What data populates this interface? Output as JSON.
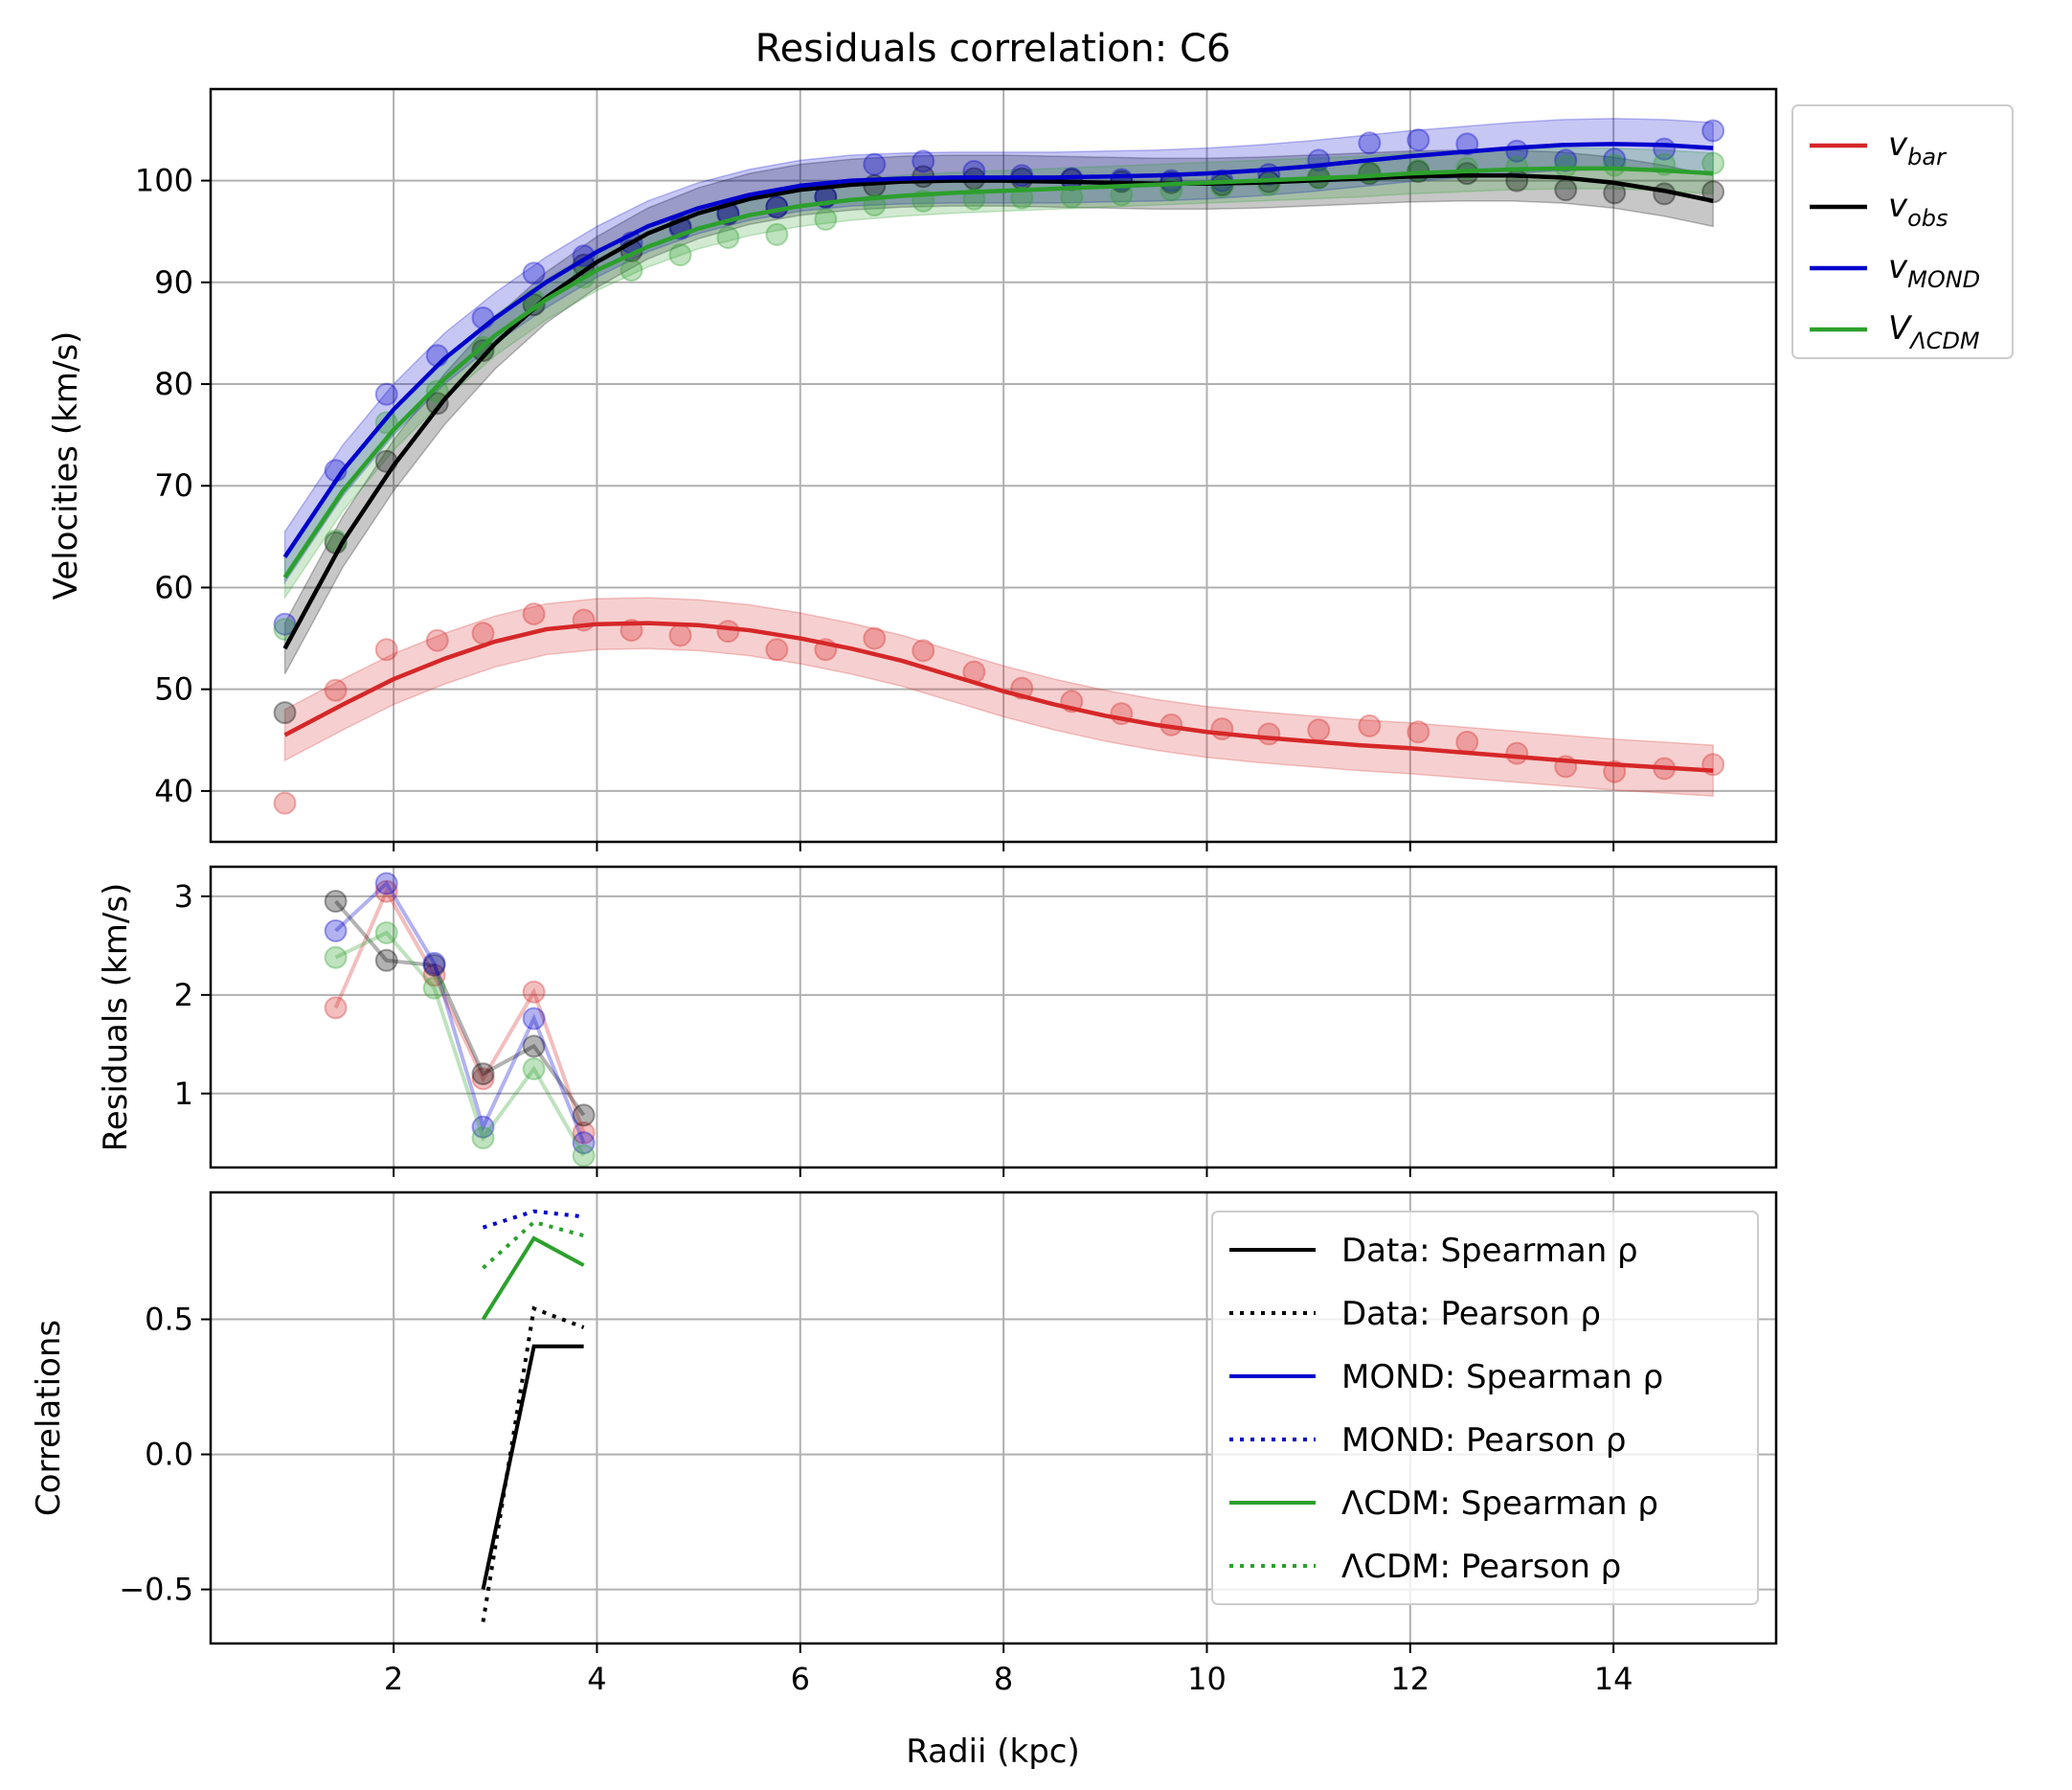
{
  "chart_data": {
    "title": "Residuals correlation: C6",
    "xlabel": "Radii (kpc)",
    "xlim": [
      0.2,
      15.6
    ],
    "xticks": [
      2,
      4,
      6,
      8,
      10,
      12,
      14
    ],
    "colors": {
      "bar": "#d62728",
      "obs": "#000000",
      "mond": "#0000cc",
      "lcdm": "#2ca02c",
      "grid": "#b0b0b0"
    },
    "panels": [
      {
        "id": "velocities",
        "type": "line",
        "ylabel": "Velocities (km/s)",
        "ylim": [
          35,
          109
        ],
        "yticks": [
          40,
          50,
          60,
          70,
          80,
          90,
          100
        ],
        "grid": true,
        "legend": "outside-right",
        "legend_entries": [
          {
            "main": "v",
            "sub": "bar",
            "color": "#d62728"
          },
          {
            "main": "v",
            "sub": "obs",
            "color": "#000000"
          },
          {
            "main": "v",
            "sub": "MOND",
            "color": "#0000cc"
          },
          {
            "main": "V",
            "sub": "ΛCDM",
            "color": "#2ca02c"
          }
        ],
        "x_points": [
          0.93,
          1.43,
          1.93,
          2.43,
          2.88,
          3.38,
          3.87,
          4.34,
          4.82,
          5.29,
          5.77,
          6.25,
          6.73,
          7.21,
          7.71,
          8.18,
          8.67,
          9.16,
          9.65,
          10.15,
          10.61,
          11.1,
          11.6,
          12.08,
          12.56,
          13.05,
          13.53,
          14.01,
          14.5,
          14.98
        ],
        "series": [
          {
            "key": "bar",
            "color": "#d62728",
            "band": 2.5,
            "points": [
              38.8,
              49.9,
              53.9,
              54.8,
              55.5,
              57.4,
              56.8,
              55.8,
              55.3,
              55.7,
              53.9,
              53.9,
              55.0,
              53.8,
              51.7,
              50.1,
              48.8,
              47.6,
              46.5,
              46.1,
              45.6,
              46.0,
              46.4,
              45.8,
              44.8,
              43.7,
              42.4,
              41.9,
              42.2,
              42.6
            ],
            "line_x": [
              0.93,
              1.5,
              2.0,
              2.5,
              3.0,
              3.5,
              4.0,
              4.5,
              5.0,
              5.5,
              6.0,
              6.5,
              7.0,
              7.5,
              8.0,
              8.5,
              9.0,
              9.5,
              10.0,
              10.5,
              11.0,
              11.5,
              12.0,
              12.5,
              13.0,
              13.5,
              14.0,
              14.5,
              14.98
            ],
            "line_y": [
              45.5,
              48.5,
              51.0,
              53.0,
              54.7,
              55.9,
              56.4,
              56.5,
              56.3,
              55.8,
              55.0,
              54.0,
              52.8,
              51.3,
              49.8,
              48.5,
              47.4,
              46.5,
              45.8,
              45.3,
              44.9,
              44.5,
              44.2,
              43.8,
              43.4,
              43.0,
              42.6,
              42.3,
              42.0
            ]
          },
          {
            "key": "obs",
            "color": "#000000",
            "band": 2.5,
            "points": [
              47.7,
              64.4,
              72.4,
              78.1,
              83.3,
              87.8,
              91.7,
              93.1,
              95.5,
              96.7,
              97.4,
              98.4,
              99.5,
              100.4,
              100.2,
              100.2,
              100.1,
              99.9,
              99.8,
              99.6,
              99.9,
              100.3,
              100.7,
              100.9,
              100.7,
              100.0,
              99.1,
              98.8,
              98.7,
              98.9
            ],
            "line_x": [
              0.93,
              1.5,
              2.0,
              2.5,
              3.0,
              3.5,
              4.0,
              4.5,
              5.0,
              5.5,
              6.0,
              6.5,
              7.0,
              7.5,
              8.0,
              8.5,
              9.0,
              9.5,
              10.0,
              10.5,
              11.0,
              11.5,
              12.0,
              12.5,
              13.0,
              13.5,
              14.0,
              14.5,
              14.98
            ],
            "line_y": [
              54.0,
              64.5,
              72.0,
              78.5,
              84.0,
              88.5,
              92.0,
              94.8,
              96.8,
              98.2,
              99.1,
              99.6,
              99.9,
              100.0,
              100.0,
              99.9,
              99.8,
              99.7,
              99.7,
              99.8,
              100.0,
              100.2,
              100.4,
              100.5,
              100.5,
              100.3,
              99.8,
              99.0,
              98.0
            ]
          },
          {
            "key": "mond",
            "color": "#0000cc",
            "band": 2.5,
            "points": [
              56.4,
              71.5,
              79.0,
              82.8,
              86.5,
              90.9,
              92.6,
              93.9,
              95.3,
              96.8,
              97.4,
              98.4,
              101.6,
              101.9,
              100.9,
              100.5,
              100.2,
              100.1,
              100.0,
              100.0,
              100.6,
              102.0,
              103.7,
              104.0,
              103.6,
              102.9,
              102.0,
              102.1,
              103.1,
              104.9
            ],
            "line_x": [
              0.93,
              1.5,
              2.0,
              2.5,
              3.0,
              3.5,
              4.0,
              4.5,
              5.0,
              5.5,
              6.0,
              6.5,
              7.0,
              7.5,
              8.0,
              8.5,
              9.0,
              9.5,
              10.0,
              10.5,
              11.0,
              11.5,
              12.0,
              12.5,
              13.0,
              13.5,
              14.0,
              14.5,
              14.98
            ],
            "line_y": [
              63.0,
              71.5,
              77.5,
              82.5,
              86.5,
              90.0,
              93.0,
              95.5,
              97.3,
              98.6,
              99.5,
              100.0,
              100.2,
              100.3,
              100.3,
              100.3,
              100.4,
              100.5,
              100.7,
              101.0,
              101.4,
              101.9,
              102.4,
              102.8,
              103.2,
              103.5,
              103.6,
              103.5,
              103.2
            ]
          },
          {
            "key": "lcdm",
            "color": "#2ca02c",
            "band": 2.0,
            "points": [
              55.9,
              64.6,
              76.2,
              79.3,
              83.6,
              88.2,
              90.5,
              91.2,
              92.7,
              94.4,
              94.7,
              96.2,
              97.6,
              98.0,
              98.2,
              98.3,
              98.4,
              98.6,
              99.1,
              99.4,
              99.6,
              100.3,
              100.8,
              101.0,
              101.2,
              101.3,
              101.4,
              101.5,
              101.6,
              101.7
            ],
            "line_x": [
              0.93,
              1.5,
              2.0,
              2.5,
              3.0,
              3.5,
              4.0,
              4.5,
              5.0,
              5.5,
              6.0,
              6.5,
              7.0,
              7.5,
              8.0,
              8.5,
              9.0,
              9.5,
              10.0,
              10.5,
              11.0,
              11.5,
              12.0,
              12.5,
              13.0,
              13.5,
              14.0,
              14.5,
              14.98
            ],
            "line_y": [
              61.0,
              69.5,
              75.5,
              80.5,
              84.8,
              88.3,
              91.2,
              93.5,
              95.3,
              96.6,
              97.5,
              98.1,
              98.5,
              98.8,
              99.0,
              99.2,
              99.4,
              99.6,
              99.8,
              100.0,
              100.2,
              100.4,
              100.7,
              100.9,
              101.1,
              101.2,
              101.2,
              101.0,
              100.7
            ]
          }
        ]
      },
      {
        "id": "residuals",
        "type": "line",
        "ylabel": "Residuals (km/s)",
        "ylim": [
          0.25,
          3.3
        ],
        "yticks": [
          1,
          2,
          3
        ],
        "grid": true,
        "x": [
          1.43,
          1.93,
          2.4,
          2.88,
          3.38,
          3.87
        ],
        "series": [
          {
            "key": "bar",
            "color": "#d62728",
            "values": [
              1.87,
              3.05,
              2.2,
              1.15,
              2.03,
              0.6
            ]
          },
          {
            "key": "obs",
            "color": "#000000",
            "values": [
              2.95,
              2.35,
              2.3,
              1.2,
              1.48,
              0.78
            ]
          },
          {
            "key": "mond",
            "color": "#0000cc",
            "values": [
              2.65,
              3.13,
              2.32,
              0.66,
              1.76,
              0.5
            ]
          },
          {
            "key": "lcdm",
            "color": "#2ca02c",
            "values": [
              2.38,
              2.63,
              2.07,
              0.55,
              1.25,
              0.37
            ]
          }
        ]
      },
      {
        "id": "correlations",
        "type": "line",
        "ylabel": "Correlations",
        "ylim": [
          -0.7,
          0.97
        ],
        "yticks": [
          -0.5,
          0.0,
          0.5
        ],
        "ytick_labels": [
          "−0.5",
          "0.0",
          "0.5"
        ],
        "grid": true,
        "legend": "upper-right",
        "series": [
          {
            "name": "Data: Spearman ρ",
            "color": "#000000",
            "style": "solid",
            "x": [
              2.88,
              3.38,
              3.87
            ],
            "values": [
              -0.5,
              0.4,
              0.4
            ]
          },
          {
            "name": "Data: Pearson ρ",
            "color": "#000000",
            "style": "dotted",
            "x": [
              2.88,
              3.38,
              3.87
            ],
            "values": [
              -0.62,
              0.54,
              0.47
            ]
          },
          {
            "name": "MOND: Spearman ρ",
            "color": "#0000cc",
            "style": "solid",
            "x": [],
            "values": []
          },
          {
            "name": "MOND: Pearson ρ",
            "color": "#0000cc",
            "style": "dotted",
            "x": [
              2.88,
              3.38,
              3.87
            ],
            "values": [
              0.84,
              0.9,
              0.88
            ]
          },
          {
            "name": "ΛCDM: Spearman ρ",
            "color": "#2ca02c",
            "style": "solid",
            "x": [
              2.88,
              3.38,
              3.87
            ],
            "values": [
              0.5,
              0.8,
              0.7
            ]
          },
          {
            "name": "ΛCDM: Pearson ρ",
            "color": "#2ca02c",
            "style": "dotted",
            "x": [
              2.88,
              3.38,
              3.87
            ],
            "values": [
              0.69,
              0.86,
              0.81
            ]
          }
        ]
      }
    ]
  }
}
